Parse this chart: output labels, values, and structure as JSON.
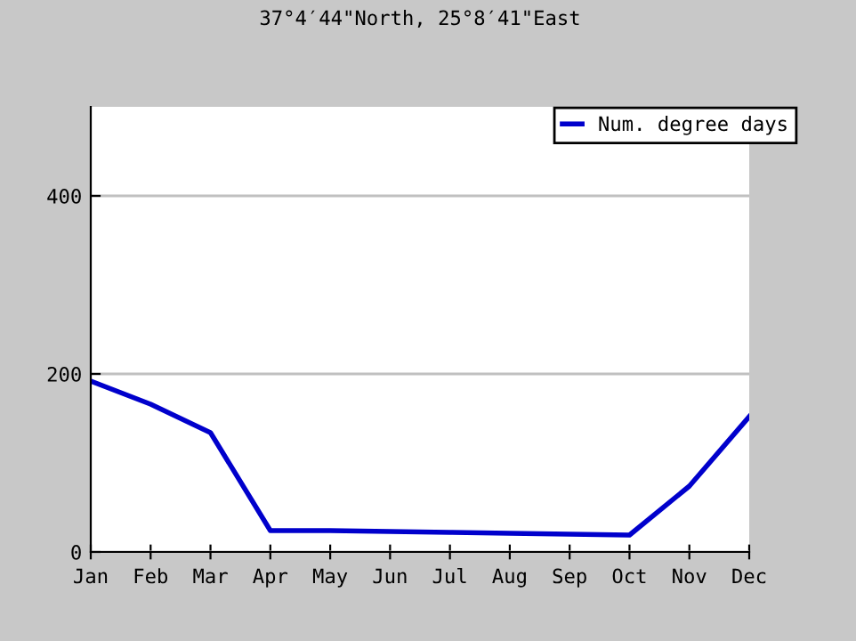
{
  "chart_data": {
    "type": "line",
    "title": "37°4′44\"North, 25°8′41\"East",
    "categories": [
      "Jan",
      "Feb",
      "Mar",
      "Apr",
      "May",
      "Jun",
      "Jul",
      "Aug",
      "Sep",
      "Oct",
      "Nov",
      "Dec"
    ],
    "series": [
      {
        "name": "Num. degree days",
        "color": "#0000cc",
        "values": [
          192,
          166,
          134,
          24,
          24,
          23,
          22,
          21,
          20,
          19,
          74,
          152
        ]
      }
    ],
    "ylim": [
      0,
      500
    ],
    "yticks": [
      0,
      200,
      400
    ],
    "grid": "y",
    "legend": "top right",
    "marker": "none",
    "line_style": "solid"
  }
}
